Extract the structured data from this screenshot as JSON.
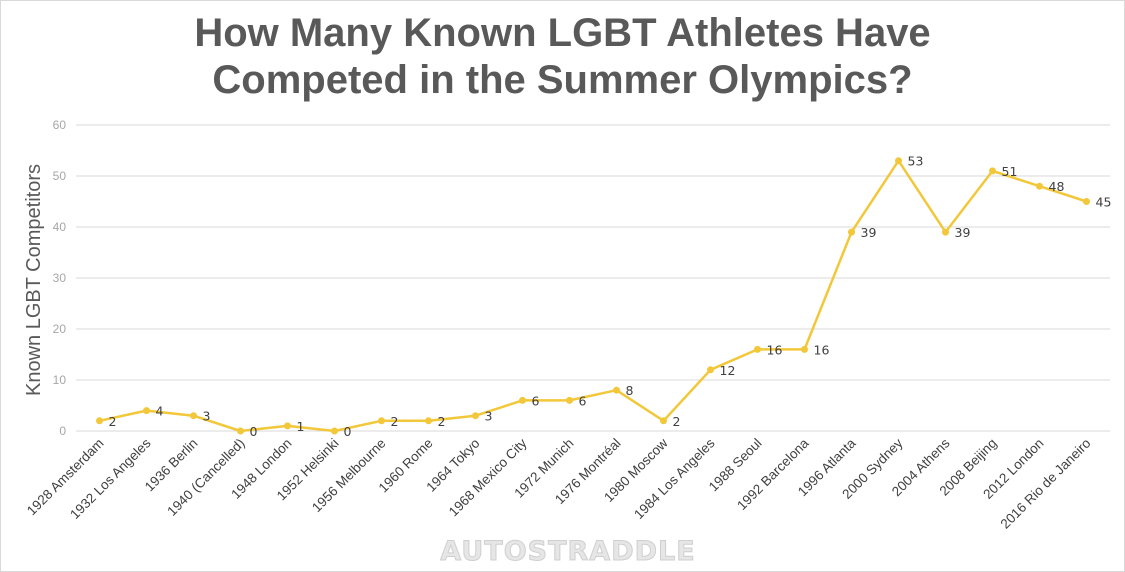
{
  "chart_data": {
    "type": "line",
    "title_lines": [
      "How Many Known LGBT Athletes Have",
      "Competed in the Summer Olympics?"
    ],
    "ylabel": "Known LGBT Competitors",
    "xlabel": "",
    "ylim": [
      0,
      60
    ],
    "yticks": [
      "0",
      "10",
      "20",
      "30",
      "40",
      "50",
      "60"
    ],
    "grid": true,
    "legend": "none",
    "categories": [
      "1928 Amsterdam",
      "1932 Los Angeles",
      "1936 Berlin",
      "1940 (Cancelled)",
      "1948 London",
      "1952 Helsinki",
      "1956 Melbourne",
      "1960 Rome",
      "1964 Tokyo",
      "1968 Mexico City",
      "1972 Munich",
      "1976 Montréal",
      "1980 Moscow",
      "1984 Los Angeles",
      "1988 Seoul",
      "1992 Barcelona",
      "1996 Atlanta",
      "2000 Sydney",
      "2004 Athens",
      "2008 Beijing",
      "2012 London",
      "2016 Rio de Janeiro"
    ],
    "values": [
      2,
      4,
      3,
      0,
      1,
      0,
      2,
      2,
      3,
      6,
      6,
      8,
      2,
      12,
      16,
      16,
      39,
      53,
      39,
      51,
      48,
      45
    ],
    "line_color": "#f2c83a"
  },
  "watermark": "AUTOSTRADDLE"
}
